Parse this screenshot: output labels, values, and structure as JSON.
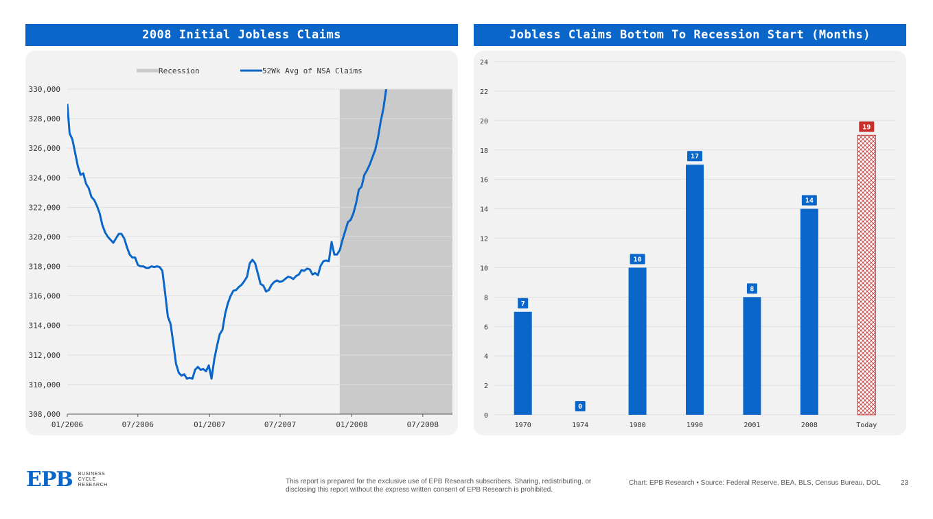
{
  "left_chart": {
    "title": "2008 Initial Jobless Claims",
    "legend": {
      "recession": "Recession",
      "series": "52Wk Avg of NSA Claims"
    }
  },
  "right_chart": {
    "title": "Jobless Claims Bottom To Recession Start (Months)"
  },
  "colors": {
    "accent": "#0a66c8",
    "highlight": "#c9302c",
    "recession": "#cacaca"
  },
  "chart_data": [
    {
      "type": "line",
      "title": "2008 Initial Jobless Claims",
      "x_tick_labels": [
        "01/2006",
        "07/2006",
        "01/2007",
        "07/2007",
        "01/2008",
        "07/2008"
      ],
      "ylim": [
        308000,
        330000
      ],
      "y_ticks": [
        308000,
        310000,
        312000,
        314000,
        316000,
        318000,
        320000,
        322000,
        324000,
        326000,
        328000,
        330000
      ],
      "y_tick_labels": [
        "308,000",
        "310,000",
        "312,000",
        "314,000",
        "316,000",
        "318,000",
        "320,000",
        "322,000",
        "324,000",
        "326,000",
        "328,000",
        "330,000"
      ],
      "recession_start": "2007-12",
      "grid": true,
      "legend_position": "top",
      "series": [
        {
          "name": "52Wk Avg of NSA Claims",
          "points": [
            [
              "2006-01-01",
              329000
            ],
            [
              "2006-01-07",
              327000
            ],
            [
              "2006-01-14",
              326600
            ],
            [
              "2006-01-21",
              325700
            ],
            [
              "2006-01-28",
              324800
            ],
            [
              "2006-02-04",
              324200
            ],
            [
              "2006-02-11",
              324300
            ],
            [
              "2006-02-18",
              323600
            ],
            [
              "2006-02-25",
              323300
            ],
            [
              "2006-03-04",
              322700
            ],
            [
              "2006-03-11",
              322500
            ],
            [
              "2006-03-18",
              322100
            ],
            [
              "2006-03-25",
              321600
            ],
            [
              "2006-04-01",
              320800
            ],
            [
              "2006-04-08",
              320300
            ],
            [
              "2006-04-15",
              320000
            ],
            [
              "2006-04-22",
              319800
            ],
            [
              "2006-04-29",
              319600
            ],
            [
              "2006-05-06",
              319900
            ],
            [
              "2006-05-13",
              320200
            ],
            [
              "2006-05-20",
              320200
            ],
            [
              "2006-05-27",
              319900
            ],
            [
              "2006-06-03",
              319300
            ],
            [
              "2006-06-10",
              318800
            ],
            [
              "2006-06-17",
              318600
            ],
            [
              "2006-06-24",
              318600
            ],
            [
              "2006-07-01",
              318100
            ],
            [
              "2006-07-08",
              318000
            ],
            [
              "2006-07-15",
              318000
            ],
            [
              "2006-07-22",
              317900
            ],
            [
              "2006-07-29",
              317900
            ],
            [
              "2006-08-05",
              318000
            ],
            [
              "2006-08-12",
              317950
            ],
            [
              "2006-08-19",
              318000
            ],
            [
              "2006-08-26",
              317950
            ],
            [
              "2006-09-02",
              317700
            ],
            [
              "2006-09-09",
              316200
            ],
            [
              "2006-09-16",
              314600
            ],
            [
              "2006-09-23",
              314100
            ],
            [
              "2006-09-30",
              312800
            ],
            [
              "2006-10-07",
              311400
            ],
            [
              "2006-10-14",
              310800
            ],
            [
              "2006-10-21",
              310600
            ],
            [
              "2006-10-28",
              310700
            ],
            [
              "2006-11-04",
              310400
            ],
            [
              "2006-11-11",
              310450
            ],
            [
              "2006-11-18",
              310400
            ],
            [
              "2006-11-25",
              311000
            ],
            [
              "2006-12-02",
              311200
            ],
            [
              "2006-12-09",
              311000
            ],
            [
              "2006-12-16",
              311050
            ],
            [
              "2006-12-23",
              310900
            ],
            [
              "2006-12-30",
              311300
            ],
            [
              "2007-01-06",
              310400
            ],
            [
              "2007-01-13",
              311700
            ],
            [
              "2007-01-20",
              312600
            ],
            [
              "2007-01-27",
              313400
            ],
            [
              "2007-02-03",
              313700
            ],
            [
              "2007-02-10",
              314800
            ],
            [
              "2007-02-17",
              315500
            ],
            [
              "2007-02-24",
              316000
            ],
            [
              "2007-03-03",
              316350
            ],
            [
              "2007-03-10",
              316400
            ],
            [
              "2007-03-17",
              316600
            ],
            [
              "2007-03-24",
              316750
            ],
            [
              "2007-03-31",
              317000
            ],
            [
              "2007-04-07",
              317300
            ],
            [
              "2007-04-14",
              318200
            ],
            [
              "2007-04-21",
              318450
            ],
            [
              "2007-04-28",
              318200
            ],
            [
              "2007-05-05",
              317500
            ],
            [
              "2007-05-12",
              316800
            ],
            [
              "2007-05-19",
              316700
            ],
            [
              "2007-05-26",
              316300
            ],
            [
              "2007-06-02",
              316400
            ],
            [
              "2007-06-09",
              316750
            ],
            [
              "2007-06-16",
              316950
            ],
            [
              "2007-06-23",
              317050
            ],
            [
              "2007-06-30",
              316950
            ],
            [
              "2007-07-07",
              317000
            ],
            [
              "2007-07-14",
              317150
            ],
            [
              "2007-07-21",
              317300
            ],
            [
              "2007-07-28",
              317250
            ],
            [
              "2007-08-04",
              317150
            ],
            [
              "2007-08-11",
              317350
            ],
            [
              "2007-08-18",
              317450
            ],
            [
              "2007-08-25",
              317750
            ],
            [
              "2007-09-01",
              317700
            ],
            [
              "2007-09-08",
              317850
            ],
            [
              "2007-09-15",
              317800
            ],
            [
              "2007-09-22",
              317450
            ],
            [
              "2007-09-29",
              317550
            ],
            [
              "2007-10-06",
              317400
            ],
            [
              "2007-10-13",
              318050
            ],
            [
              "2007-10-20",
              318350
            ],
            [
              "2007-10-27",
              318400
            ],
            [
              "2007-11-03",
              318350
            ],
            [
              "2007-11-10",
              319650
            ],
            [
              "2007-11-17",
              318800
            ],
            [
              "2007-11-24",
              318800
            ],
            [
              "2007-12-01",
              319100
            ],
            [
              "2007-12-08",
              319800
            ],
            [
              "2007-12-15",
              320400
            ],
            [
              "2007-12-22",
              321000
            ],
            [
              "2007-12-29",
              321150
            ],
            [
              "2008-01-05",
              321600
            ],
            [
              "2008-01-12",
              322300
            ],
            [
              "2008-01-19",
              323200
            ],
            [
              "2008-01-26",
              323400
            ],
            [
              "2008-02-02",
              324200
            ],
            [
              "2008-02-09",
              324500
            ],
            [
              "2008-02-16",
              324900
            ],
            [
              "2008-02-23",
              325400
            ],
            [
              "2008-03-01",
              325900
            ],
            [
              "2008-03-08",
              326700
            ],
            [
              "2008-03-15",
              327800
            ],
            [
              "2008-03-22",
              328700
            ],
            [
              "2008-03-29",
              330000
            ]
          ]
        }
      ]
    },
    {
      "type": "bar",
      "title": "Jobless Claims Bottom To Recession Start (Months)",
      "categories": [
        "1970",
        "1974",
        "1980",
        "1990",
        "2001",
        "2008",
        "Today"
      ],
      "values": [
        7,
        0,
        10,
        17,
        8,
        14,
        19
      ],
      "value_labels": [
        "7",
        "0",
        "10",
        "17",
        "8",
        "14",
        "19"
      ],
      "highlight_category": "Today",
      "ylim": [
        0,
        24
      ],
      "y_ticks": [
        0,
        2,
        4,
        6,
        8,
        10,
        12,
        14,
        16,
        18,
        20,
        22,
        24
      ],
      "y_tick_labels": [
        "0",
        "2",
        "4",
        "6",
        "8",
        "10",
        "12",
        "14",
        "16",
        "18",
        "20",
        "22",
        "24"
      ],
      "grid": true
    }
  ],
  "footer": {
    "logo_mark": "EPB",
    "logo_lines": [
      "BUSINESS",
      "CYCLE",
      "RESEARCH"
    ],
    "disclaimer": "This report is prepared for the exclusive use of EPB Research subscribers. Sharing, redistributing, or disclosing this report without the express written consent of EPB Research is prohibited.",
    "source": "Chart: EPB Research  •  Source: Federal Reserve, BEA, BLS, Census Bureau, DOL",
    "page": "23"
  }
}
